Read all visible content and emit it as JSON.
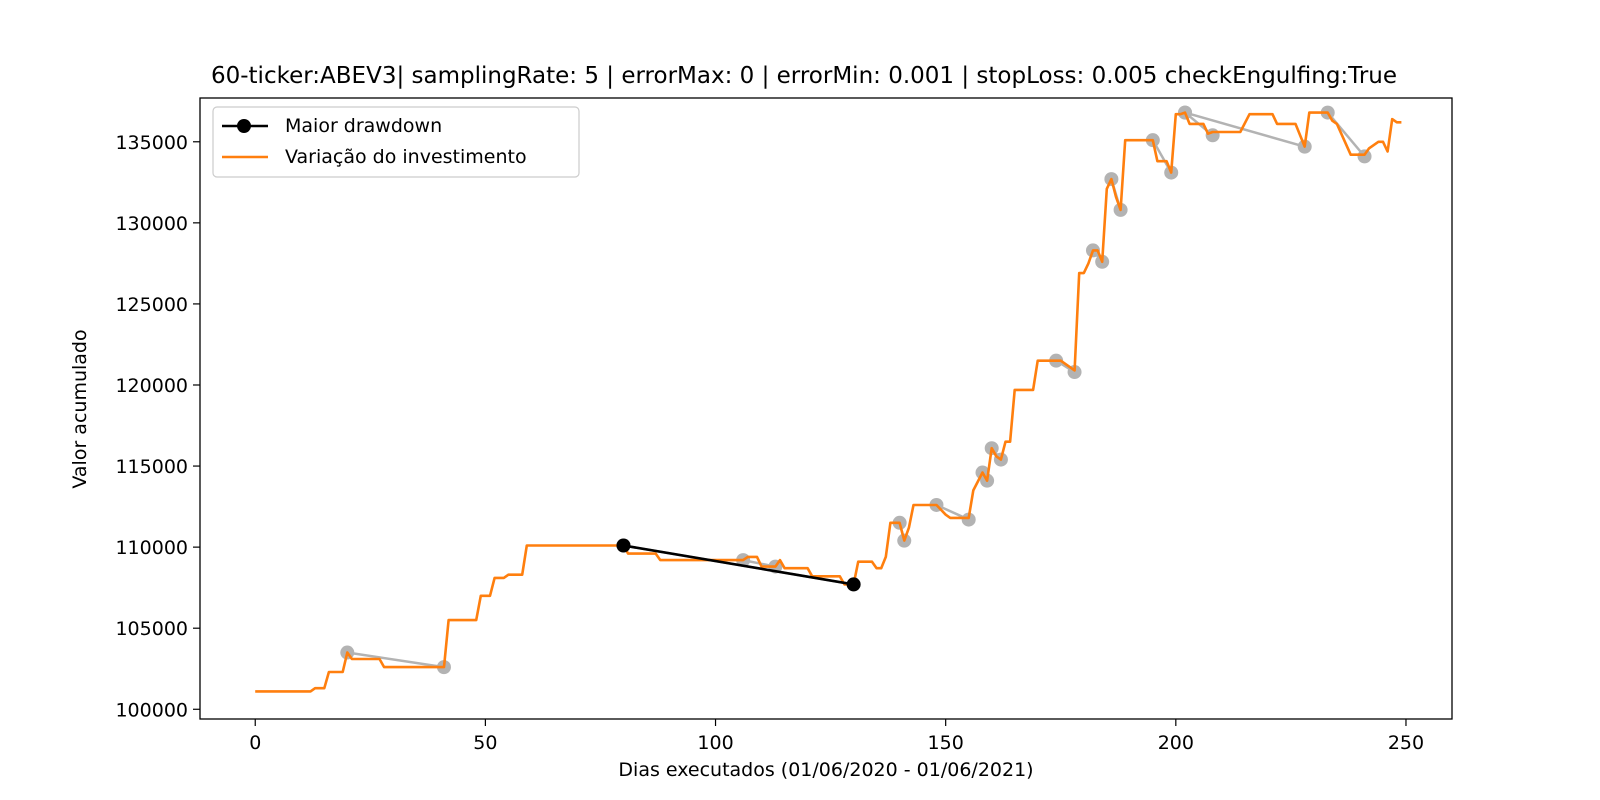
{
  "chart_data": {
    "type": "line",
    "title": "60-ticker:ABEV3| samplingRate: 5 | errorMax: 0 | errorMin: 0.001 | stopLoss: 0.005 checkEngulfing:True",
    "xlabel": "Dias executados (01/06/2020 - 01/06/2021)",
    "ylabel": "Valor acumulado",
    "xlim": [
      -12,
      260
    ],
    "ylim": [
      99400,
      137700
    ],
    "x_ticks": [
      0,
      50,
      100,
      150,
      200,
      250
    ],
    "y_ticks": [
      100000,
      105000,
      110000,
      115000,
      120000,
      125000,
      130000,
      135000
    ],
    "x_tick_labels": [
      "0",
      "50",
      "100",
      "150",
      "200",
      "250"
    ],
    "y_tick_labels": [
      "100000",
      "105000",
      "110000",
      "115000",
      "120000",
      "125000",
      "130000",
      "135000"
    ],
    "grid": false,
    "legend_position": "top-left",
    "series": [
      {
        "name": "Maior drawdown",
        "color": "#000000",
        "marker": "circle",
        "points": [
          [
            80,
            110100
          ],
          [
            130,
            107700
          ]
        ]
      },
      {
        "name": "Variação do investimento",
        "color": "#ff7f0e",
        "points": [
          [
            0,
            101100
          ],
          [
            12,
            101100
          ],
          [
            13,
            101300
          ],
          [
            15,
            101300
          ],
          [
            16,
            102300
          ],
          [
            19,
            102300
          ],
          [
            20,
            103500
          ],
          [
            21,
            103100
          ],
          [
            27,
            103100
          ],
          [
            28,
            102600
          ],
          [
            41,
            102600
          ],
          [
            42,
            105500
          ],
          [
            48,
            105500
          ],
          [
            49,
            107000
          ],
          [
            51,
            107000
          ],
          [
            52,
            108100
          ],
          [
            54,
            108100
          ],
          [
            55,
            108300
          ],
          [
            58,
            108300
          ],
          [
            59,
            110100
          ],
          [
            80,
            110100
          ],
          [
            81,
            109600
          ],
          [
            87,
            109600
          ],
          [
            88,
            109200
          ],
          [
            106,
            109200
          ],
          [
            107,
            109400
          ],
          [
            109,
            109400
          ],
          [
            110,
            108800
          ],
          [
            113,
            108800
          ],
          [
            114,
            109200
          ],
          [
            115,
            108700
          ],
          [
            120,
            108700
          ],
          [
            121,
            108200
          ],
          [
            127,
            108200
          ],
          [
            128,
            107700
          ],
          [
            130,
            107700
          ],
          [
            131,
            109100
          ],
          [
            134,
            109100
          ],
          [
            135,
            108700
          ],
          [
            136,
            108700
          ],
          [
            137,
            109400
          ],
          [
            138,
            111500
          ],
          [
            140,
            111500
          ],
          [
            141,
            110400
          ],
          [
            142,
            111200
          ],
          [
            143,
            112600
          ],
          [
            148,
            112600
          ],
          [
            150,
            112000
          ],
          [
            151,
            111800
          ],
          [
            155,
            111800
          ],
          [
            156,
            113500
          ],
          [
            158,
            114600
          ],
          [
            159,
            114100
          ],
          [
            160,
            116100
          ],
          [
            161,
            115600
          ],
          [
            162,
            115400
          ],
          [
            163,
            116500
          ],
          [
            164,
            116500
          ],
          [
            165,
            119700
          ],
          [
            169,
            119700
          ],
          [
            170,
            121500
          ],
          [
            175,
            121500
          ],
          [
            176,
            121300
          ],
          [
            177,
            121100
          ],
          [
            178,
            120900
          ],
          [
            179,
            126900
          ],
          [
            180,
            126900
          ],
          [
            181,
            127500
          ],
          [
            182,
            128300
          ],
          [
            183,
            128300
          ],
          [
            184,
            127600
          ],
          [
            185,
            132100
          ],
          [
            186,
            132700
          ],
          [
            187,
            131600
          ],
          [
            188,
            130800
          ],
          [
            189,
            135100
          ],
          [
            195,
            135100
          ],
          [
            196,
            133800
          ],
          [
            198,
            133800
          ],
          [
            199,
            133100
          ],
          [
            200,
            136700
          ],
          [
            201,
            136700
          ],
          [
            202,
            136800
          ],
          [
            203,
            136100
          ],
          [
            206,
            136100
          ],
          [
            207,
            135500
          ],
          [
            208,
            135600
          ],
          [
            214,
            135600
          ],
          [
            216,
            136700
          ],
          [
            221,
            136700
          ],
          [
            222,
            136100
          ],
          [
            226,
            136100
          ],
          [
            228,
            134700
          ],
          [
            229,
            136800
          ],
          [
            233,
            136800
          ],
          [
            234,
            136300
          ],
          [
            235,
            136100
          ],
          [
            238,
            134200
          ],
          [
            241,
            134200
          ],
          [
            242,
            134600
          ],
          [
            244,
            135000
          ],
          [
            245,
            135000
          ],
          [
            246,
            134400
          ],
          [
            247,
            136400
          ],
          [
            248,
            136200
          ],
          [
            249,
            136200
          ]
        ]
      },
      {
        "name": "",
        "color": "#b3b3b3",
        "marker": "circle",
        "segments": [
          [
            [
              20,
              103500
            ],
            [
              41,
              102600
            ]
          ],
          [
            [
              80,
              110100
            ],
            [
              130,
              107700
            ]
          ],
          [
            [
              106,
              109200
            ],
            [
              113,
              108800
            ]
          ],
          [
            [
              140,
              111500
            ],
            [
              141,
              110400
            ]
          ],
          [
            [
              148,
              112600
            ],
            [
              155,
              111700
            ]
          ],
          [
            [
              158,
              114600
            ],
            [
              159,
              114100
            ]
          ],
          [
            [
              160,
              116100
            ],
            [
              162,
              115400
            ]
          ],
          [
            [
              174,
              121500
            ],
            [
              178,
              120800
            ]
          ],
          [
            [
              182,
              128300
            ],
            [
              184,
              127600
            ]
          ],
          [
            [
              186,
              132700
            ],
            [
              188,
              130800
            ]
          ],
          [
            [
              195,
              135100
            ],
            [
              199,
              133100
            ]
          ],
          [
            [
              202,
              136800
            ],
            [
              208,
              135400
            ]
          ],
          [
            [
              202,
              136800
            ],
            [
              228,
              134700
            ]
          ],
          [
            [
              233,
              136800
            ],
            [
              241,
              134100
            ]
          ]
        ]
      }
    ]
  }
}
